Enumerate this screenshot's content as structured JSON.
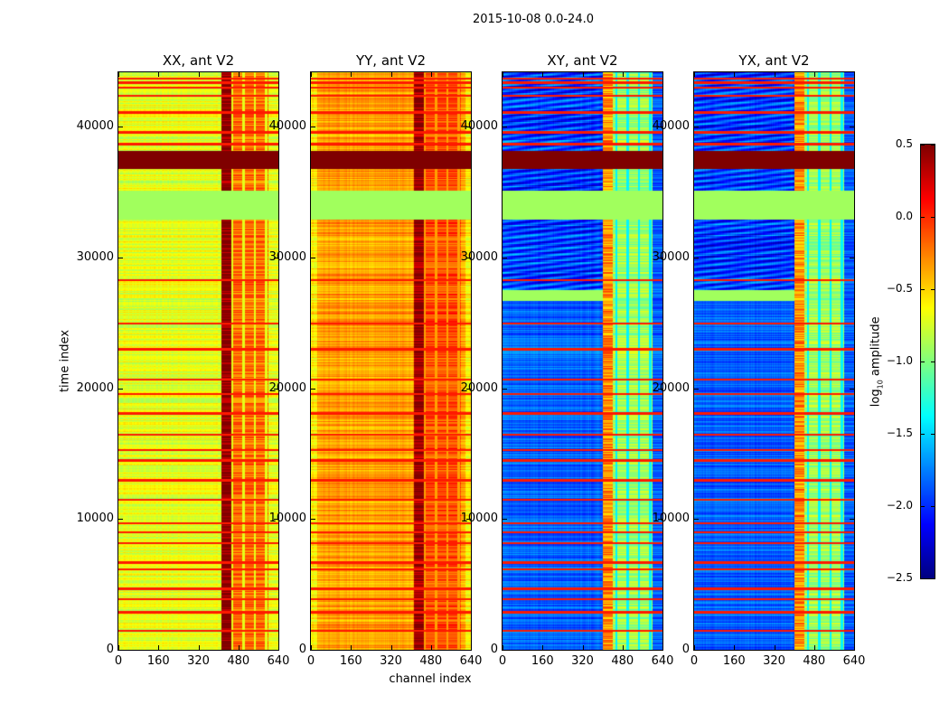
{
  "chart_data": {
    "type": "heatmap",
    "title": "2015-10-08 0.0-24.0",
    "xlabel": "channel index",
    "ylabel": "time index",
    "xlim": [
      0,
      640
    ],
    "ylim": [
      0,
      44150
    ],
    "xticks": [
      "0",
      "160",
      "320",
      "480",
      "640"
    ],
    "yticks": [
      "0",
      "10000",
      "20000",
      "30000",
      "40000"
    ],
    "colormap": "jet",
    "colorbar": {
      "label_prefix": "log",
      "label_sub": "10",
      "label_suffix": " amplitude",
      "range": [
        -2.5,
        0.5
      ],
      "ticks": [
        "0.5",
        "0.0",
        "−0.5",
        "−1.0",
        "−1.5",
        "−2.0",
        "−2.5"
      ]
    },
    "panels": [
      {
        "title": "XX, ant V2",
        "base_log_amp": -0.7,
        "band_channels": [
          410,
          450
        ],
        "band_log_amp": 0.4,
        "rfi_channels": [
          450,
          600
        ],
        "rfi_log_amp": -0.2
      },
      {
        "title": "YY, ant V2",
        "base_log_amp": -0.35,
        "band_channels": [
          410,
          450
        ],
        "band_log_amp": 0.35,
        "rfi_channels": [
          450,
          600
        ],
        "rfi_log_amp": -0.1
      },
      {
        "title": "XY, ant V2",
        "base_log_amp": -1.85,
        "band_channels": [
          400,
          440
        ],
        "band_log_amp": -0.3,
        "rfi_channels": [
          440,
          600
        ],
        "rfi_log_amp": -0.9
      },
      {
        "title": "YX, ant V2",
        "base_log_amp": -1.85,
        "band_channels": [
          400,
          440
        ],
        "band_log_amp": -0.3,
        "rfi_channels": [
          440,
          600
        ],
        "rfi_log_amp": -0.9
      }
    ],
    "flagged_time_ranges": [
      [
        36820,
        38140
      ]
    ],
    "flagged_log_amp": 0.5,
    "constant_time_ranges": [
      [
        32950,
        35100
      ]
    ],
    "constant_log_amp": -0.9,
    "bright_rows": [
      1500,
      2900,
      3900,
      4700,
      6200,
      6700,
      8200,
      9000,
      9700,
      11500,
      13000,
      14500,
      15300,
      16500,
      18100,
      19600,
      20700,
      23000,
      25000,
      28300,
      38700,
      39600,
      41100,
      42400,
      43000,
      43400,
      43700
    ]
  }
}
